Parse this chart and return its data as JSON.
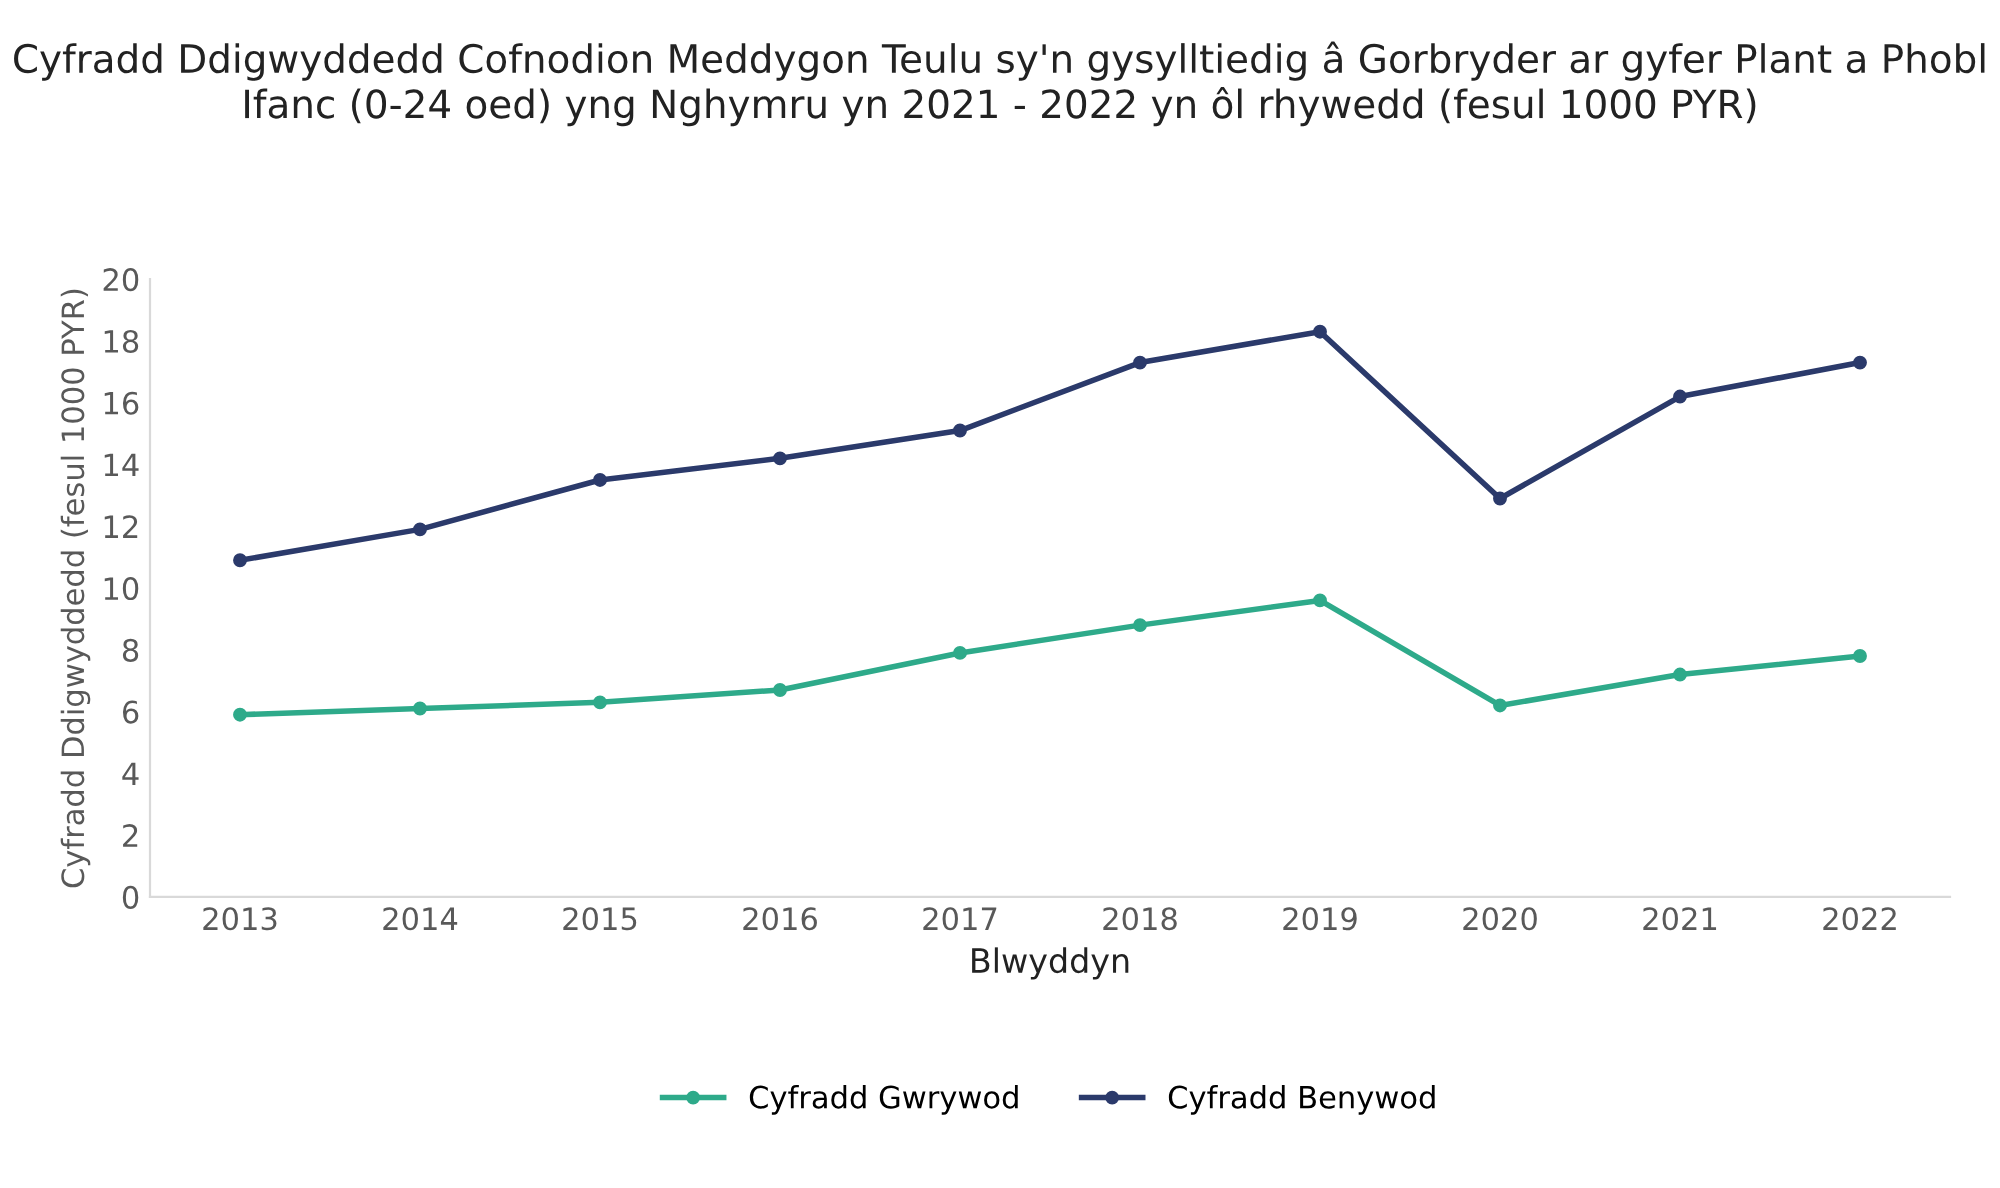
{
  "chart_data": {
    "type": "line",
    "title": "Cyfradd Ddigwyddedd Cofnodion Meddygon Teulu sy'n gysylltiedig â Gorbryder ar gyfer Plant a Phobl Ifanc (0-24 oed) yng Nghymru yn 2021 - 2022 yn ôl rhywedd (fesul 1000 PYR)",
    "xlabel": "Blwyddyn",
    "ylabel": "Cyfradd Ddigwyddedd (fesul 1000 PYR)",
    "categories": [
      "2013",
      "2014",
      "2015",
      "2016",
      "2017",
      "2018",
      "2019",
      "2020",
      "2021",
      "2022"
    ],
    "series": [
      {
        "name": "Cyfradd Gwrywod",
        "color": "#2eaa8a",
        "values": [
          5.9,
          6.1,
          6.3,
          6.7,
          7.9,
          8.8,
          9.6,
          6.2,
          7.2,
          7.8
        ]
      },
      {
        "name": "Cyfradd Benywod",
        "color": "#2b3a6b",
        "values": [
          10.9,
          11.9,
          13.5,
          14.2,
          15.1,
          17.3,
          18.3,
          12.9,
          16.2,
          17.3
        ]
      }
    ],
    "ylim": [
      0,
      20
    ],
    "yticks": [
      0,
      2,
      4,
      6,
      8,
      10,
      12,
      14,
      16,
      18,
      20
    ],
    "grid": false,
    "legend": "bottom",
    "marker": "circle",
    "line_style": "solid"
  }
}
